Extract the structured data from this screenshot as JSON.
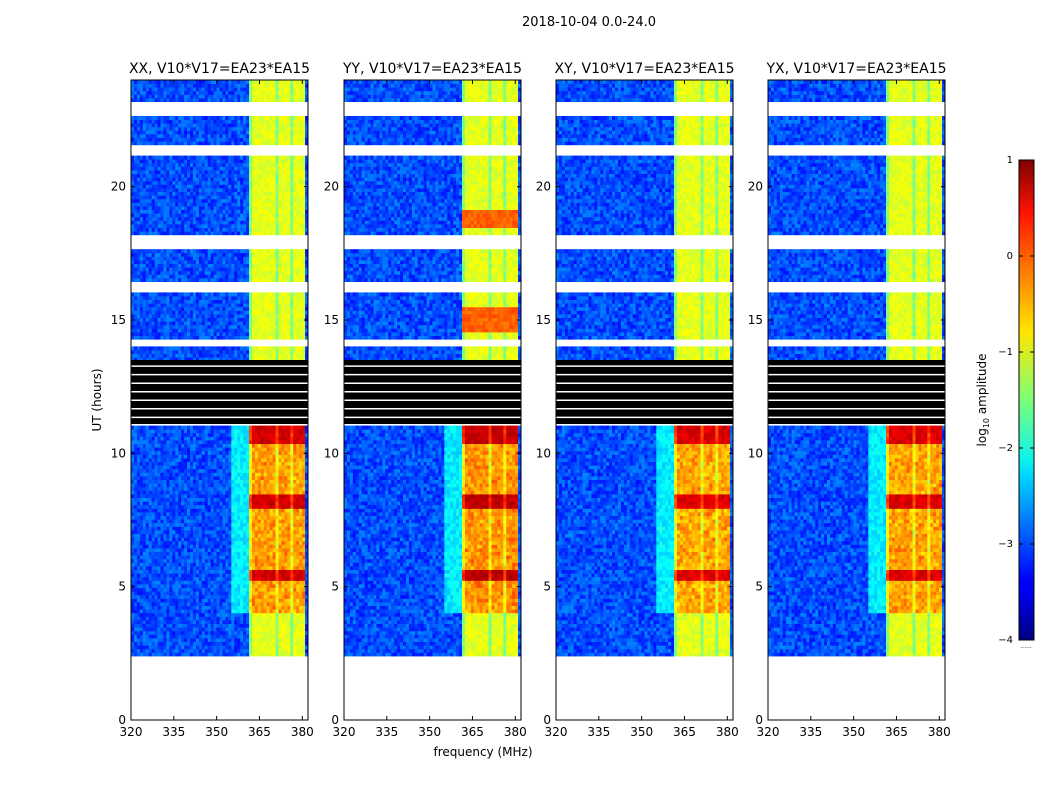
{
  "chart_data": {
    "type": "heatmap",
    "suptitle": "2018-10-04 0.0-24.0",
    "xlabel": "frequency (MHz)",
    "ylabel": "UT (hours)",
    "xlim": [
      320,
      382
    ],
    "ylim": [
      0,
      24
    ],
    "xticks": [
      320,
      335,
      350,
      365,
      380
    ],
    "yticks": [
      0,
      5,
      10,
      15,
      20
    ],
    "colorbar": {
      "label_prefix": "log",
      "label_sub": "10",
      "label_suffix": " amplitude",
      "min": -4,
      "max": 1,
      "ticks": [
        1,
        0,
        -1,
        -2,
        -3,
        -4
      ],
      "tick_labels": [
        "1",
        "0",
        "−1",
        "−2",
        "−3",
        "−4"
      ],
      "colormap": "jet",
      "footnote": "......"
    },
    "coverage": {
      "data_start_hour": 2.4,
      "data_end_hour": 24.0,
      "flagged_hours": [
        [
          11.1,
          13.5
        ]
      ],
      "gap_hours": [
        [
          22.6,
          23.2
        ],
        [
          21.1,
          21.6
        ],
        [
          17.7,
          18.2
        ],
        [
          16.0,
          16.5
        ],
        [
          14.0,
          14.3
        ]
      ]
    },
    "bright_band_mhz": [
      361,
      381
    ],
    "panels": [
      {
        "title": "XX, V10*V17=EA23*EA15",
        "pol": "XX",
        "strength": 1.0
      },
      {
        "title": "YY, V10*V17=EA23*EA15",
        "pol": "YY",
        "strength": 1.15
      },
      {
        "title": "XY, V10*V17=EA23*EA15",
        "pol": "XY",
        "strength": 0.9
      },
      {
        "title": "YX, V10*V17=EA23*EA15",
        "pol": "YX",
        "strength": 0.9
      }
    ]
  }
}
